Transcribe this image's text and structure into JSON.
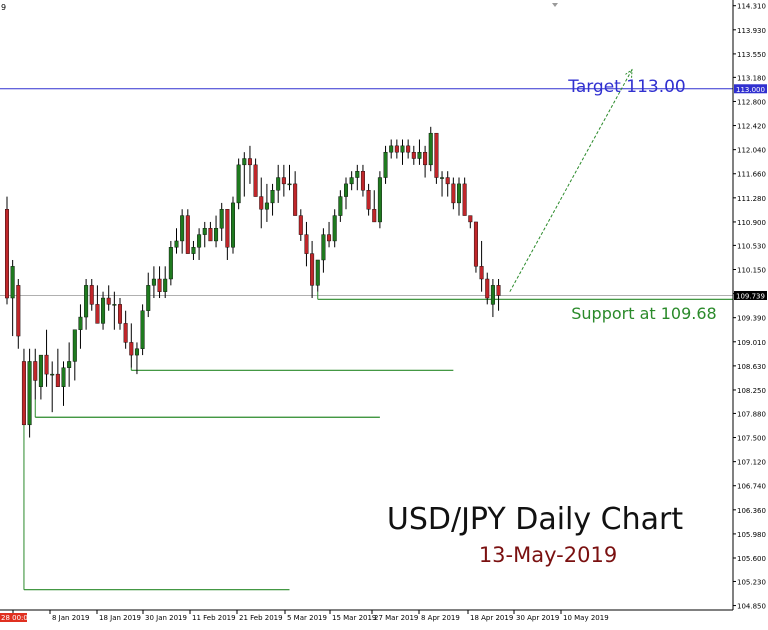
{
  "chart_data": {
    "type": "candlestick",
    "title": "USD/JPY Daily Chart",
    "subtitle": "13-May-2019",
    "top_left_marker": "9",
    "current_price_label": "109.739",
    "target_line": {
      "value": 113.0,
      "label": "113.000",
      "annotation": "Target 113.00"
    },
    "support_annotation": "Support at 109.68",
    "ylim": [
      104.78,
      114.4
    ],
    "y_ticks": [
      "114.310",
      "113.930",
      "113.550",
      "113.180",
      "112.800",
      "112.420",
      "112.040",
      "111.660",
      "111.280",
      "110.900",
      "110.530",
      "110.150",
      "109.770",
      "109.390",
      "109.010",
      "108.630",
      "108.250",
      "107.880",
      "107.500",
      "107.120",
      "106.740",
      "106.360",
      "105.980",
      "105.600",
      "105.230",
      "104.850"
    ],
    "x_ticks": [
      "28 00:00",
      "8 Jan 2019",
      "18 Jan 2019",
      "30 Jan 2019",
      "11 Feb 2019",
      "21 Feb 2019",
      "5 Mar 2019",
      "15 Mar 2019",
      "27 Mar 2019",
      "8 Apr 2019",
      "18 Apr 2019",
      "30 Apr 2019",
      "10 May 2019"
    ],
    "x_tick_first_highlight": true,
    "candles": [
      {
        "o": 111.1,
        "h": 111.3,
        "l": 109.6,
        "c": 109.7
      },
      {
        "o": 109.7,
        "h": 110.3,
        "l": 109.1,
        "c": 110.2
      },
      {
        "o": 109.9,
        "h": 110.0,
        "l": 108.9,
        "c": 109.1
      },
      {
        "o": 108.7,
        "h": 108.9,
        "l": 107.7,
        "c": 107.7
      },
      {
        "o": 107.7,
        "h": 108.9,
        "l": 107.5,
        "c": 108.7
      },
      {
        "o": 108.7,
        "h": 108.9,
        "l": 108.1,
        "c": 108.4
      },
      {
        "o": 108.3,
        "h": 108.8,
        "l": 108.1,
        "c": 108.8
      },
      {
        "o": 108.8,
        "h": 109.2,
        "l": 108.3,
        "c": 108.5
      },
      {
        "o": 108.5,
        "h": 108.7,
        "l": 107.9,
        "c": 108.5
      },
      {
        "o": 108.5,
        "h": 108.9,
        "l": 108.3,
        "c": 108.3
      },
      {
        "o": 108.3,
        "h": 108.7,
        "l": 108.0,
        "c": 108.6
      },
      {
        "o": 108.6,
        "h": 109.0,
        "l": 108.3,
        "c": 108.7
      },
      {
        "o": 108.7,
        "h": 109.2,
        "l": 108.4,
        "c": 109.2
      },
      {
        "o": 109.2,
        "h": 109.6,
        "l": 108.9,
        "c": 109.4
      },
      {
        "o": 109.4,
        "h": 110.0,
        "l": 109.2,
        "c": 109.9
      },
      {
        "o": 109.9,
        "h": 110.0,
        "l": 109.5,
        "c": 109.6
      },
      {
        "o": 109.6,
        "h": 109.9,
        "l": 109.3,
        "c": 109.3
      },
      {
        "o": 109.3,
        "h": 109.8,
        "l": 109.2,
        "c": 109.7
      },
      {
        "o": 109.7,
        "h": 109.9,
        "l": 109.5,
        "c": 109.6
      },
      {
        "o": 109.6,
        "h": 109.8,
        "l": 109.2,
        "c": 109.6
      },
      {
        "o": 109.6,
        "h": 109.7,
        "l": 109.2,
        "c": 109.3
      },
      {
        "o": 109.3,
        "h": 109.5,
        "l": 108.9,
        "c": 109.0
      },
      {
        "o": 109.0,
        "h": 109.3,
        "l": 108.6,
        "c": 108.8
      },
      {
        "o": 108.8,
        "h": 109.0,
        "l": 108.5,
        "c": 108.9
      },
      {
        "o": 108.9,
        "h": 109.6,
        "l": 108.8,
        "c": 109.5
      },
      {
        "o": 109.5,
        "h": 110.1,
        "l": 109.4,
        "c": 109.9
      },
      {
        "o": 109.9,
        "h": 110.2,
        "l": 109.7,
        "c": 110.0
      },
      {
        "o": 110.0,
        "h": 110.2,
        "l": 109.7,
        "c": 109.8
      },
      {
        "o": 109.8,
        "h": 110.2,
        "l": 109.7,
        "c": 110.0
      },
      {
        "o": 110.0,
        "h": 110.6,
        "l": 109.9,
        "c": 110.5
      },
      {
        "o": 110.5,
        "h": 110.8,
        "l": 110.4,
        "c": 110.6
      },
      {
        "o": 110.6,
        "h": 111.1,
        "l": 110.4,
        "c": 111.0
      },
      {
        "o": 111.0,
        "h": 111.1,
        "l": 110.4,
        "c": 110.4
      },
      {
        "o": 110.4,
        "h": 110.6,
        "l": 110.3,
        "c": 110.5
      },
      {
        "o": 110.5,
        "h": 110.8,
        "l": 110.3,
        "c": 110.7
      },
      {
        "o": 110.7,
        "h": 110.9,
        "l": 110.5,
        "c": 110.8
      },
      {
        "o": 110.8,
        "h": 110.9,
        "l": 110.6,
        "c": 110.6
      },
      {
        "o": 110.6,
        "h": 111.0,
        "l": 110.5,
        "c": 110.8
      },
      {
        "o": 110.8,
        "h": 111.2,
        "l": 110.6,
        "c": 111.1
      },
      {
        "o": 111.1,
        "h": 111.1,
        "l": 110.3,
        "c": 110.5
      },
      {
        "o": 110.5,
        "h": 111.3,
        "l": 110.4,
        "c": 111.2
      },
      {
        "o": 111.2,
        "h": 111.9,
        "l": 111.1,
        "c": 111.8
      },
      {
        "o": 111.8,
        "h": 112.0,
        "l": 111.3,
        "c": 111.9
      },
      {
        "o": 111.9,
        "h": 112.1,
        "l": 111.5,
        "c": 111.8
      },
      {
        "o": 111.8,
        "h": 111.9,
        "l": 111.3,
        "c": 111.3
      },
      {
        "o": 111.3,
        "h": 111.6,
        "l": 110.8,
        "c": 111.1
      },
      {
        "o": 111.1,
        "h": 111.5,
        "l": 110.9,
        "c": 111.2
      },
      {
        "o": 111.2,
        "h": 111.5,
        "l": 111.0,
        "c": 111.4
      },
      {
        "o": 111.4,
        "h": 111.8,
        "l": 111.2,
        "c": 111.6
      },
      {
        "o": 111.6,
        "h": 111.8,
        "l": 111.3,
        "c": 111.5
      },
      {
        "o": 111.5,
        "h": 111.8,
        "l": 111.4,
        "c": 111.5
      },
      {
        "o": 111.5,
        "h": 111.7,
        "l": 111.0,
        "c": 111.0
      },
      {
        "o": 111.0,
        "h": 111.1,
        "l": 110.6,
        "c": 110.7
      },
      {
        "o": 110.7,
        "h": 110.9,
        "l": 110.2,
        "c": 110.4
      },
      {
        "o": 110.4,
        "h": 110.6,
        "l": 109.7,
        "c": 109.9
      },
      {
        "o": 109.9,
        "h": 110.3,
        "l": 109.8,
        "c": 110.3
      },
      {
        "o": 110.3,
        "h": 110.8,
        "l": 110.1,
        "c": 110.7
      },
      {
        "o": 110.7,
        "h": 110.9,
        "l": 110.5,
        "c": 110.6
      },
      {
        "o": 110.6,
        "h": 111.1,
        "l": 110.5,
        "c": 111.0
      },
      {
        "o": 111.0,
        "h": 111.4,
        "l": 110.9,
        "c": 111.3
      },
      {
        "o": 111.3,
        "h": 111.6,
        "l": 111.1,
        "c": 111.5
      },
      {
        "o": 111.5,
        "h": 111.7,
        "l": 111.4,
        "c": 111.6
      },
      {
        "o": 111.6,
        "h": 111.8,
        "l": 111.4,
        "c": 111.7
      },
      {
        "o": 111.7,
        "h": 111.8,
        "l": 111.3,
        "c": 111.4
      },
      {
        "o": 111.4,
        "h": 111.5,
        "l": 111.0,
        "c": 111.1
      },
      {
        "o": 111.1,
        "h": 111.4,
        "l": 110.9,
        "c": 110.9
      },
      {
        "o": 110.9,
        "h": 111.7,
        "l": 110.8,
        "c": 111.6
      },
      {
        "o": 111.6,
        "h": 112.1,
        "l": 111.5,
        "c": 112.0
      },
      {
        "o": 112.0,
        "h": 112.2,
        "l": 111.9,
        "c": 112.1
      },
      {
        "o": 112.1,
        "h": 112.2,
        "l": 111.9,
        "c": 112.0
      },
      {
        "o": 112.0,
        "h": 112.2,
        "l": 111.8,
        "c": 112.1
      },
      {
        "o": 112.1,
        "h": 112.2,
        "l": 111.9,
        "c": 112.0
      },
      {
        "o": 112.0,
        "h": 112.1,
        "l": 111.8,
        "c": 111.9
      },
      {
        "o": 111.9,
        "h": 112.2,
        "l": 111.8,
        "c": 112.0
      },
      {
        "o": 112.0,
        "h": 112.1,
        "l": 111.6,
        "c": 111.8
      },
      {
        "o": 111.8,
        "h": 112.4,
        "l": 111.7,
        "c": 112.3
      },
      {
        "o": 112.3,
        "h": 112.3,
        "l": 111.5,
        "c": 111.6
      },
      {
        "o": 111.6,
        "h": 111.7,
        "l": 111.3,
        "c": 111.6
      },
      {
        "o": 111.6,
        "h": 111.7,
        "l": 111.3,
        "c": 111.5
      },
      {
        "o": 111.5,
        "h": 111.6,
        "l": 111.1,
        "c": 111.2
      },
      {
        "o": 111.2,
        "h": 111.6,
        "l": 111.0,
        "c": 111.5
      },
      {
        "o": 111.5,
        "h": 111.6,
        "l": 111.0,
        "c": 111.0
      },
      {
        "o": 111.0,
        "h": 111.0,
        "l": 110.8,
        "c": 110.9
      },
      {
        "o": 110.9,
        "h": 110.9,
        "l": 110.1,
        "c": 110.2
      },
      {
        "o": 110.2,
        "h": 110.6,
        "l": 109.8,
        "c": 110.0
      },
      {
        "o": 110.0,
        "h": 110.1,
        "l": 109.6,
        "c": 109.7
      },
      {
        "o": 109.6,
        "h": 110.0,
        "l": 109.4,
        "c": 109.9
      },
      {
        "o": 109.9,
        "h": 110.0,
        "l": 109.5,
        "c": 109.74
      }
    ],
    "support_lines": [
      {
        "value": 109.68,
        "from_candle": 55,
        "to_candle": "end"
      },
      {
        "value": 108.56,
        "from_candle": 22,
        "to_candle": 79
      },
      {
        "value": 107.82,
        "from_candle": 5,
        "to_candle": 66
      },
      {
        "value": 105.1,
        "from_candle": 3,
        "to_candle": 50
      }
    ],
    "projection": {
      "from_candle": 89,
      "from_value": 109.8,
      "to_value": 113.3
    },
    "colors": {
      "up": "#1f7a1f",
      "down": "#c0262a",
      "wick": "#000000",
      "support": "#2a8a2a",
      "target": "#3030d0",
      "price_line": "#b0b0b0",
      "projection": "#2a8a2a",
      "title": "#111111",
      "subtitle": "#7a1010",
      "first_x_tick_bg": "#e03020"
    }
  }
}
